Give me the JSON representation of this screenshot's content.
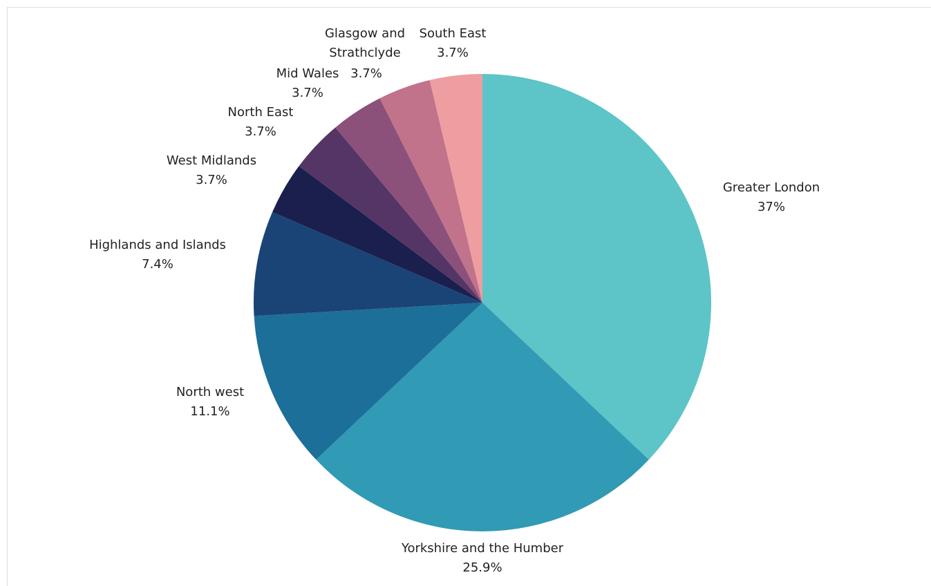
{
  "chart_data": {
    "type": "pie",
    "start": "top",
    "direction": "clockwise",
    "slices": [
      {
        "name": "Greater London",
        "value": 37,
        "value_label": "37%",
        "color": "#5dc4c8"
      },
      {
        "name": "Yorkshire and the Humber",
        "value": 25.9,
        "value_label": "25.9%",
        "color": "#319ab5"
      },
      {
        "name": "North west",
        "value": 11.1,
        "value_label": "11.1%",
        "color": "#1c6f98"
      },
      {
        "name": "Highlands and Islands",
        "value": 7.4,
        "value_label": "7.4%",
        "color": "#1a4475"
      },
      {
        "name": "West Midlands",
        "value": 3.7,
        "value_label": "3.7%",
        "color": "#1b1f4e"
      },
      {
        "name": "North East",
        "value": 3.7,
        "value_label": "3.7%",
        "color": "#553566"
      },
      {
        "name": "Mid Wales",
        "value": 3.7,
        "value_label": "3.7%",
        "color": "#8b517a"
      },
      {
        "name": "Glasgow and Strathclyde",
        "value": 3.7,
        "value_label": "3.7%",
        "color": "#c0738a"
      },
      {
        "name": "South East",
        "value": 3.7,
        "value_label": "3.7%",
        "color": "#ee9da1"
      }
    ]
  }
}
